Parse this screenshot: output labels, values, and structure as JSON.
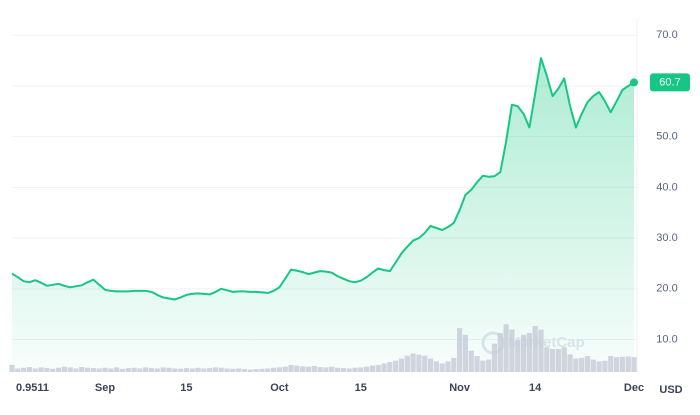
{
  "chart_data": {
    "type": "area",
    "categories": [
      "0.9511",
      null,
      null,
      null,
      null,
      null,
      null,
      null,
      null,
      null,
      null,
      null,
      null,
      null,
      null,
      null,
      "Sep",
      null,
      null,
      null,
      null,
      null,
      null,
      null,
      null,
      null,
      null,
      null,
      null,
      null,
      "15",
      null,
      null,
      null,
      null,
      null,
      null,
      null,
      null,
      null,
      null,
      null,
      null,
      null,
      null,
      null,
      "Oct",
      null,
      null,
      null,
      null,
      null,
      null,
      null,
      null,
      null,
      null,
      null,
      null,
      null,
      "15",
      null,
      null,
      null,
      null,
      null,
      null,
      null,
      null,
      null,
      null,
      null,
      null,
      null,
      null,
      null,
      null,
      "Nov",
      null,
      null,
      null,
      null,
      null,
      null,
      null,
      null,
      null,
      null,
      null,
      null,
      "14",
      null,
      null,
      null,
      null,
      null,
      null,
      null,
      null,
      null,
      null,
      null,
      null,
      null,
      null,
      null,
      null,
      "Dec"
    ],
    "values": [
      23.0,
      22.3,
      21.5,
      21.3,
      21.7,
      21.2,
      20.6,
      20.8,
      21.0,
      20.6,
      20.3,
      20.5,
      20.7,
      21.3,
      21.8,
      20.8,
      19.8,
      19.6,
      19.5,
      19.5,
      19.5,
      19.6,
      19.6,
      19.6,
      19.4,
      18.8,
      18.3,
      18.1,
      17.9,
      18.3,
      18.8,
      19.0,
      19.1,
      19.0,
      18.9,
      19.4,
      20.0,
      19.7,
      19.4,
      19.5,
      19.5,
      19.4,
      19.4,
      19.3,
      19.2,
      19.6,
      20.3,
      22.0,
      23.8,
      23.6,
      23.3,
      22.9,
      23.2,
      23.5,
      23.4,
      23.2,
      22.5,
      22.0,
      21.5,
      21.3,
      21.6,
      22.3,
      23.2,
      24.0,
      23.7,
      23.5,
      25.2,
      27.0,
      28.3,
      29.5,
      30.0,
      31.0,
      32.4,
      32.0,
      31.6,
      32.2,
      33.0,
      35.5,
      38.5,
      39.5,
      41.0,
      42.3,
      42.1,
      42.2,
      43.0,
      49.0,
      56.3,
      56.0,
      54.5,
      51.8,
      58.5,
      65.5,
      62.0,
      58.0,
      59.5,
      61.5,
      56.0,
      51.8,
      54.5,
      56.8,
      58.0,
      58.8,
      57.0,
      54.8,
      57.0,
      59.2,
      60.0,
      60.7
    ],
    "color": "#16c784",
    "volumes": [
      2.0,
      1.0,
      1.2,
      1.4,
      1.0,
      1.3,
      1.1,
      0.9,
      1.2,
      1.5,
      1.3,
      1.0,
      1.4,
      1.2,
      1.1,
      1.0,
      1.2,
      1.0,
      1.3,
      0.9,
      1.1,
      1.2,
      1.0,
      1.3,
      1.1,
      1.0,
      1.3,
      1.2,
      1.0,
      0.9,
      1.1,
      1.0,
      1.2,
      1.0,
      1.1,
      1.3,
      1.2,
      1.0,
      0.9,
      1.0,
      0.8,
      0.7,
      0.8,
      0.9,
      1.0,
      1.2,
      1.3,
      1.5,
      2.0,
      1.8,
      1.6,
      1.5,
      1.7,
      1.4,
      1.3,
      1.5,
      1.2,
      1.1,
      1.0,
      1.2,
      1.3,
      1.5,
      1.8,
      2.0,
      2.4,
      2.8,
      3.2,
      3.8,
      4.6,
      5.2,
      4.9,
      4.6,
      3.8,
      3.0,
      2.4,
      3.0,
      4.0,
      12.4,
      10.5,
      6.0,
      4.5,
      3.2,
      3.5,
      8.0,
      11.0,
      13.5,
      12.0,
      9.0,
      10.5,
      11.0,
      13.0,
      12.0,
      7.0,
      6.5,
      6.5,
      7.0,
      5.0,
      3.8,
      4.0,
      4.5,
      3.5,
      3.0,
      3.2,
      4.5,
      4.2,
      4.3,
      4.4,
      4.2
    ],
    "volume_color": "#c8ccd8",
    "y2lim": [
      0,
      100
    ],
    "ylim": [
      3.6,
      73.4
    ],
    "yticks": [
      {
        "value": 10,
        "label": "10.0"
      },
      {
        "value": 20,
        "label": "20.0"
      },
      {
        "value": 30,
        "label": "30.0"
      },
      {
        "value": 40,
        "label": "40.0"
      },
      {
        "value": 50,
        "label": "50.0"
      },
      {
        "value": 60,
        "label": "60.0"
      },
      {
        "value": 70,
        "label": "70.0"
      }
    ],
    "y_axis_label": "USD",
    "watermark": "MarketCap",
    "grid": true
  }
}
